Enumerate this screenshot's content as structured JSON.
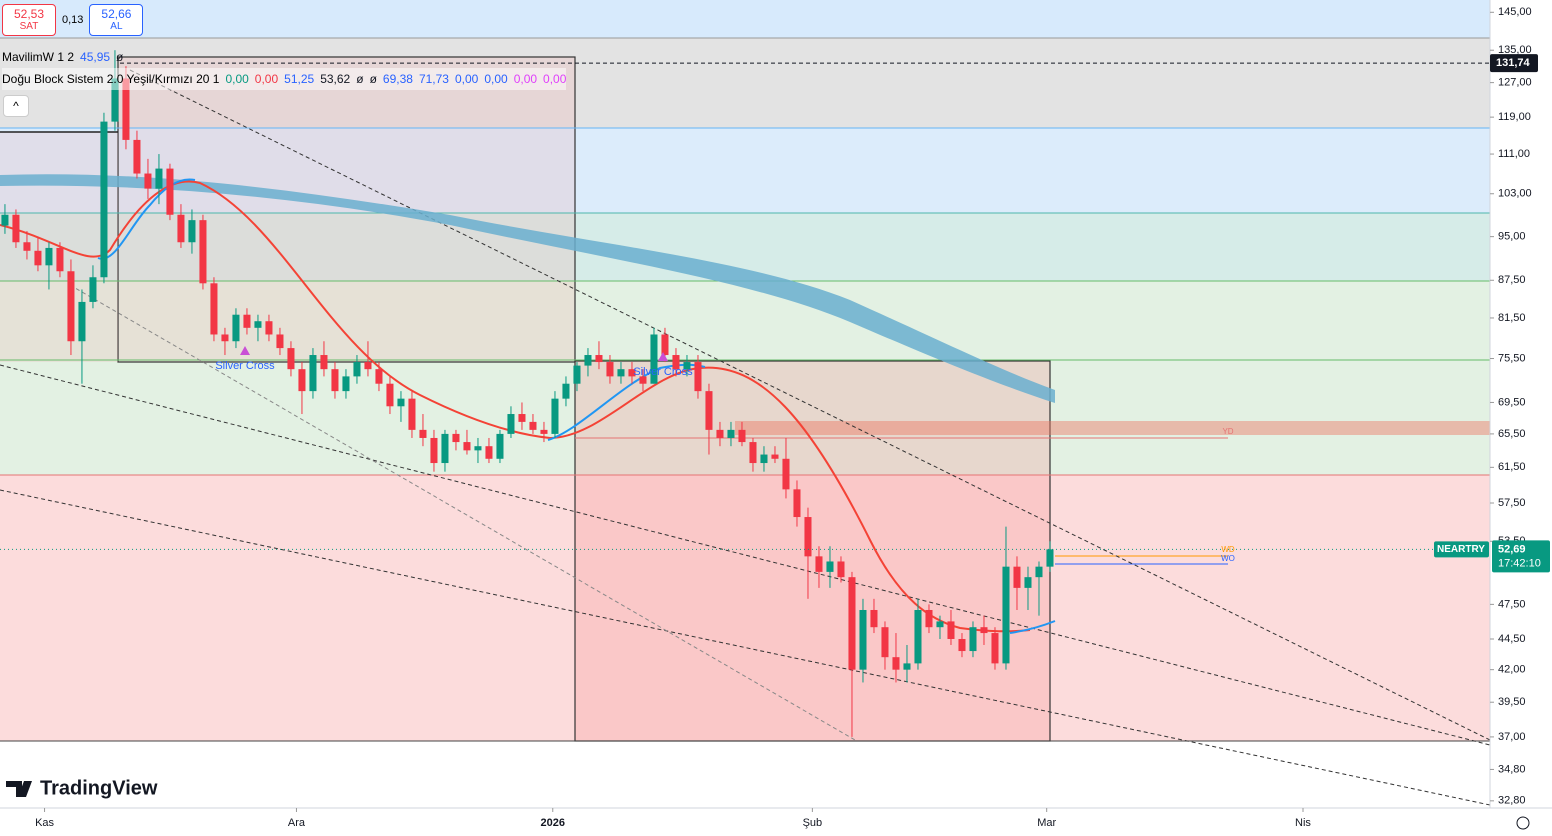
{
  "chart_data": {
    "type": "candlestick",
    "symbol": "NEARTRY",
    "quote": {
      "sell": "52,53",
      "sell_label": "SAT",
      "spread": "0,13",
      "buy": "52,66",
      "buy_label": "AL"
    },
    "indicators": [
      {
        "name": "MavilimW 1 2",
        "values": [
          {
            "text": "45,95",
            "color": "#2962ff"
          },
          {
            "text": "ø",
            "color": "#131722"
          }
        ]
      },
      {
        "name": "Doğu Block Sistem 2.0 Yeşil/Kırmızı 20 1",
        "values": [
          {
            "text": "0,00",
            "color": "#089981"
          },
          {
            "text": "0,00",
            "color": "#f23645"
          },
          {
            "text": "51,25",
            "color": "#2962ff"
          },
          {
            "text": "53,62",
            "color": "#131722"
          },
          {
            "text": "ø",
            "color": "#131722"
          },
          {
            "text": "ø",
            "color": "#131722"
          },
          {
            "text": "69,38",
            "color": "#2962ff"
          },
          {
            "text": "71,73",
            "color": "#2962ff"
          },
          {
            "text": "0,00",
            "color": "#2962ff"
          },
          {
            "text": "0,00",
            "color": "#2962ff"
          },
          {
            "text": "0,00",
            "color": "#e040fb"
          },
          {
            "text": "0,00",
            "color": "#e040fb"
          }
        ]
      }
    ],
    "log_scale": true,
    "up_color": "#089981",
    "down_color": "#f23645",
    "ylim": [
      32.36,
      148.4
    ],
    "yticks": [
      {
        "value": 145,
        "label": "145,00"
      },
      {
        "value": 135,
        "label": "135,00"
      },
      {
        "value": 127,
        "label": "127,00"
      },
      {
        "value": 119,
        "label": "119,00"
      },
      {
        "value": 111,
        "label": "111,00"
      },
      {
        "value": 103,
        "label": "103,00"
      },
      {
        "value": 95,
        "label": "95,00"
      },
      {
        "value": 87.5,
        "label": "87,50"
      },
      {
        "value": 81.5,
        "label": "81,50"
      },
      {
        "value": 75.5,
        "label": "75,50"
      },
      {
        "value": 69.5,
        "label": "69,50"
      },
      {
        "value": 65.5,
        "label": "65,50"
      },
      {
        "value": 61.5,
        "label": "61,50"
      },
      {
        "value": 57.5,
        "label": "57,50"
      },
      {
        "value": 53.5,
        "label": "53,50"
      },
      {
        "value": 47.5,
        "label": "47,50"
      },
      {
        "value": 44.5,
        "label": "44,50"
      },
      {
        "value": 42,
        "label": "42,00"
      },
      {
        "value": 39.5,
        "label": "39,50"
      },
      {
        "value": 37,
        "label": "37,00"
      },
      {
        "value": 34.8,
        "label": "34,80"
      },
      {
        "value": 32.8,
        "label": "32,80"
      }
    ],
    "xlim": [
      -0.45,
      135
    ],
    "xticks": [
      {
        "value": 3.6,
        "label": "Kas"
      },
      {
        "value": 26.5,
        "label": "Ara"
      },
      {
        "value": 49.8,
        "label": "2026"
      },
      {
        "value": 73.4,
        "label": "Şub"
      },
      {
        "value": 94.7,
        "label": "Mar"
      },
      {
        "value": 118,
        "label": "Nis"
      }
    ],
    "price_line": {
      "value": 131.74,
      "label": "131,74"
    },
    "last_price": {
      "value": 52.69,
      "label": "52,69",
      "countdown": "17:42:10"
    },
    "annotations": [
      "Silver Cross",
      "Silver Cross",
      "YD",
      "WD",
      "WO"
    ],
    "candles": [
      [
        97,
        101,
        95.5,
        99
      ],
      [
        99,
        100,
        93,
        94
      ],
      [
        94,
        96,
        91,
        92.5
      ],
      [
        92.5,
        95,
        89,
        90
      ],
      [
        90,
        94,
        86,
        93
      ],
      [
        93,
        94,
        88,
        89
      ],
      [
        89,
        91,
        76,
        78
      ],
      [
        78,
        86,
        72,
        84
      ],
      [
        84,
        90,
        83,
        88
      ],
      [
        88,
        120,
        87,
        118
      ],
      [
        118,
        135,
        116,
        128
      ],
      [
        128,
        131,
        112,
        114
      ],
      [
        114,
        116,
        106,
        107
      ],
      [
        107,
        110,
        102,
        104
      ],
      [
        104,
        111,
        101,
        108
      ],
      [
        108,
        109,
        98,
        99
      ],
      [
        99,
        101,
        93,
        94
      ],
      [
        94,
        100,
        92,
        98
      ],
      [
        98,
        99,
        86,
        87
      ],
      [
        87,
        88,
        78,
        79
      ],
      [
        79,
        80,
        76,
        78
      ],
      [
        78,
        83,
        77,
        82
      ],
      [
        82,
        83,
        79,
        80
      ],
      [
        80,
        82,
        78,
        81
      ],
      [
        81,
        82,
        78,
        79
      ],
      [
        79,
        80,
        76,
        77
      ],
      [
        77,
        78,
        73,
        74
      ],
      [
        74,
        75,
        68,
        71
      ],
      [
        71,
        77,
        70,
        76
      ],
      [
        76,
        78,
        73,
        74
      ],
      [
        74,
        75,
        70,
        71
      ],
      [
        71,
        74,
        70,
        73
      ],
      [
        73,
        76,
        72,
        75
      ],
      [
        75,
        78,
        73,
        74
      ],
      [
        74,
        75,
        71,
        72
      ],
      [
        72,
        73,
        68,
        69
      ],
      [
        69,
        71,
        67,
        70
      ],
      [
        70,
        71,
        65,
        66
      ],
      [
        66,
        68,
        64,
        65
      ],
      [
        65,
        66,
        61,
        62
      ],
      [
        62,
        66,
        61,
        65.5
      ],
      [
        65.5,
        66,
        63.5,
        64.5
      ],
      [
        64.5,
        66,
        63,
        63.5
      ],
      [
        63.5,
        65,
        62,
        64
      ],
      [
        64,
        65,
        62,
        62.5
      ],
      [
        62.5,
        66,
        62,
        65.5
      ],
      [
        65.5,
        69,
        65,
        68
      ],
      [
        68,
        69.5,
        66,
        67
      ],
      [
        67,
        68,
        65.5,
        66
      ],
      [
        66,
        67,
        64.5,
        65.5
      ],
      [
        65.5,
        71,
        65,
        70
      ],
      [
        70,
        73,
        69,
        72
      ],
      [
        72,
        75,
        71,
        74.5
      ],
      [
        74.5,
        77,
        73,
        76
      ],
      [
        76,
        78,
        74,
        75
      ],
      [
        75,
        76,
        72,
        73
      ],
      [
        73,
        75,
        72,
        74
      ],
      [
        74,
        75,
        72,
        73
      ],
      [
        73,
        74,
        71,
        72
      ],
      [
        72,
        80,
        72,
        79
      ],
      [
        79,
        80,
        75,
        76
      ],
      [
        76,
        77,
        73,
        74
      ],
      [
        74,
        76,
        73,
        75
      ],
      [
        75,
        76,
        70,
        71
      ],
      [
        71,
        72,
        63,
        66
      ],
      [
        66,
        67,
        64,
        65
      ],
      [
        65,
        67,
        64,
        66
      ],
      [
        66,
        67,
        64,
        64.5
      ],
      [
        64.5,
        65,
        61,
        62
      ],
      [
        62,
        64,
        61,
        63
      ],
      [
        63,
        64,
        62,
        62.5
      ],
      [
        62.5,
        65,
        58,
        59
      ],
      [
        59,
        60,
        55,
        56
      ],
      [
        56,
        57,
        48,
        52
      ],
      [
        52,
        53,
        49,
        50.5
      ],
      [
        50.5,
        53,
        49,
        51.5
      ],
      [
        51.5,
        52,
        49.5,
        50
      ],
      [
        50,
        50.5,
        37,
        42
      ],
      [
        42,
        48,
        41,
        47
      ],
      [
        47,
        48,
        45,
        45.5
      ],
      [
        45.5,
        46,
        42,
        43
      ],
      [
        43,
        45,
        41,
        42
      ],
      [
        42,
        44,
        41,
        42.5
      ],
      [
        42.5,
        48,
        42,
        47
      ],
      [
        47,
        47.5,
        45,
        45.5
      ],
      [
        45.5,
        46.5,
        44.5,
        46
      ],
      [
        46,
        47,
        44,
        44.5
      ],
      [
        44.5,
        45,
        43,
        43.5
      ],
      [
        43.5,
        46,
        43,
        45.5
      ],
      [
        45.5,
        46.5,
        44,
        45
      ],
      [
        45,
        45.5,
        42,
        42.5
      ],
      [
        42.5,
        55,
        42,
        51
      ],
      [
        51,
        52,
        47,
        49
      ],
      [
        49,
        51,
        47,
        50
      ],
      [
        50,
        51.5,
        46.5,
        51
      ],
      [
        51,
        53.5,
        50.5,
        52.69
      ]
    ],
    "brand": "TradingView"
  }
}
